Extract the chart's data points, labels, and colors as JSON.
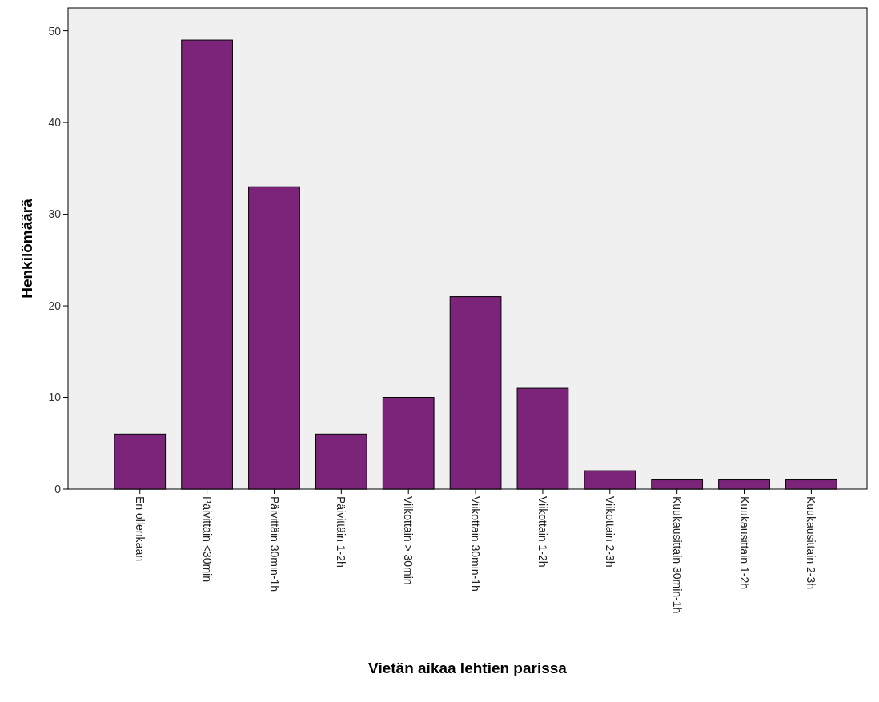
{
  "chart_data": {
    "type": "bar",
    "xlabel": "Vietän aikaa lehtien parissa",
    "ylabel": "Henkilömäärä",
    "categories": [
      "En ollenkaan",
      "Päivittäin <30min",
      "Päivittäin 30min-1h",
      "Päivittäin 1-2h",
      "Viikottain > 30min",
      "Viikottain 30min-1h",
      "Viikottain 1-2h",
      "Viikottain 2-3h",
      "Kuukausittain 30min-1h",
      "Kuukausittain 1-2h",
      "Kuukausittain 2-3h"
    ],
    "values": [
      6,
      49,
      33,
      6,
      10,
      21,
      11,
      2,
      1,
      1,
      1
    ],
    "color": "#7b2479",
    "ylim": [
      0,
      52.5
    ],
    "yticks": [
      0,
      10,
      20,
      30,
      40,
      50
    ],
    "grid": false
  }
}
